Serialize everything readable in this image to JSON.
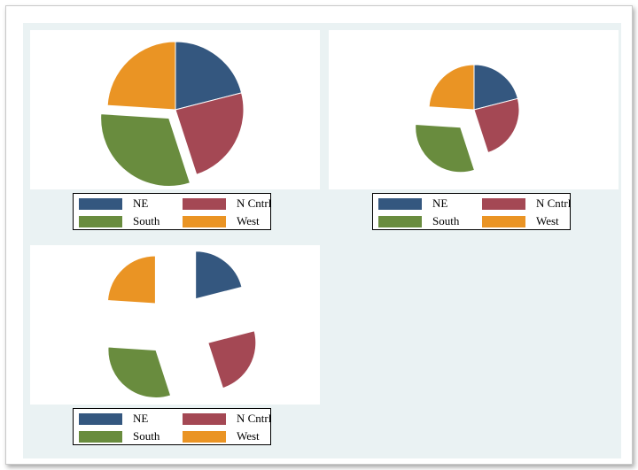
{
  "chart_data": [
    {
      "type": "pie",
      "explode": "none",
      "categories": [
        "NE",
        "N Cntrl",
        "South",
        "West"
      ],
      "values": [
        21.0,
        24.0,
        31.0,
        24.0
      ],
      "colors": [
        "#34577f",
        "#a44854",
        "#698c3e",
        "#ea9424"
      ],
      "legend": {
        "placement": "bottom",
        "labels": [
          "NE",
          "N Cntrl",
          "South",
          "West"
        ]
      }
    },
    {
      "type": "pie",
      "explode": "south",
      "categories": [
        "NE",
        "N Cntrl",
        "South",
        "West"
      ],
      "values": [
        21.0,
        24.0,
        31.0,
        24.0
      ],
      "colors": [
        "#34577f",
        "#a44854",
        "#698c3e",
        "#ea9424"
      ],
      "legend": {
        "placement": "bottom",
        "labels": [
          "NE",
          "N Cntrl",
          "South",
          "West"
        ]
      }
    },
    {
      "type": "pie",
      "explode": "all",
      "categories": [
        "NE",
        "N Cntrl",
        "South",
        "West"
      ],
      "values": [
        21.0,
        24.0,
        31.0,
        24.0
      ],
      "colors": [
        "#34577f",
        "#a44854",
        "#698c3e",
        "#ea9424"
      ],
      "legend": {
        "placement": "bottom",
        "labels": [
          "NE",
          "N Cntrl",
          "South",
          "West"
        ]
      }
    }
  ]
}
